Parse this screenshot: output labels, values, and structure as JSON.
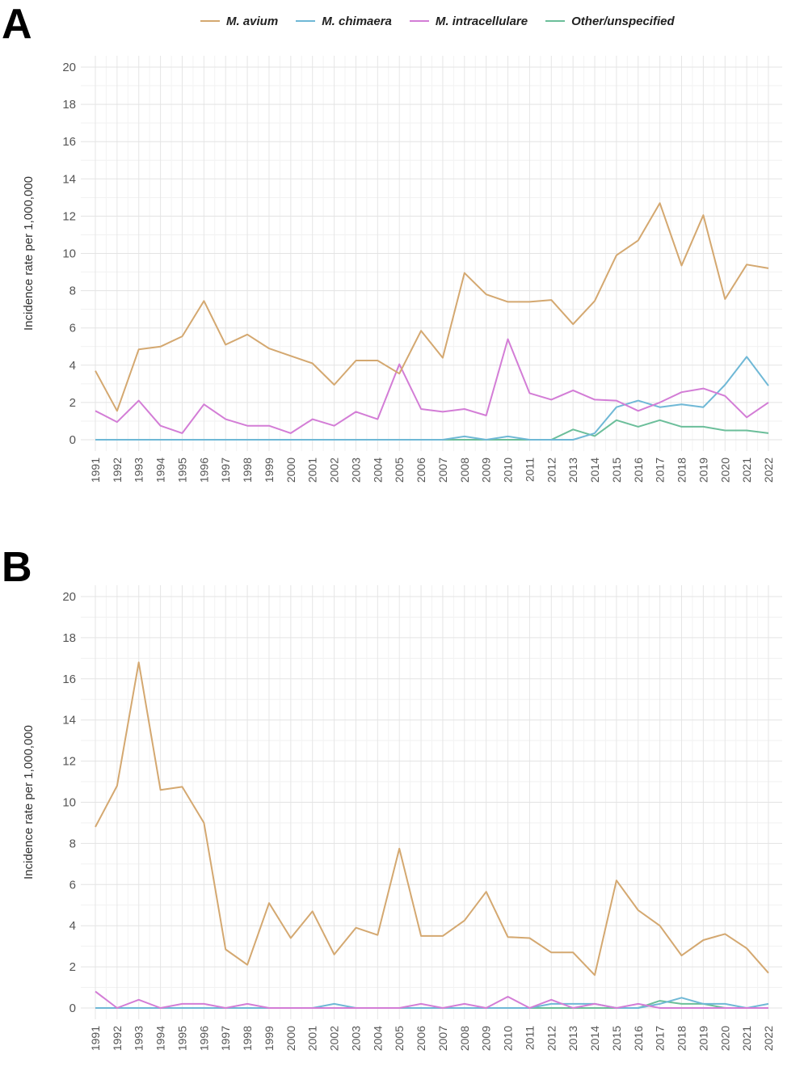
{
  "panels": {
    "a_label": "A",
    "b_label": "B"
  },
  "legend": [
    {
      "name": "M. avium",
      "color": "#D4A870"
    },
    {
      "name": "M. chimaera",
      "color": "#6FB8D6"
    },
    {
      "name": "M. intracellulare",
      "color": "#D37DD6"
    },
    {
      "name": "Other/unspecified",
      "color": "#6BBE9A"
    }
  ],
  "chart_data": [
    {
      "type": "line",
      "panel": "A",
      "ylabel": "Incidence rate per 1,000,000",
      "xlabel": "",
      "ylim": [
        0,
        20
      ],
      "yticks": [
        0,
        2,
        4,
        6,
        8,
        10,
        12,
        14,
        16,
        18,
        20
      ],
      "grid": true,
      "legend_position": "top",
      "x": [
        1991,
        1992,
        1993,
        1994,
        1995,
        1996,
        1997,
        1998,
        1999,
        2000,
        2001,
        2002,
        2003,
        2004,
        2005,
        2006,
        2007,
        2008,
        2009,
        2010,
        2011,
        2012,
        2013,
        2014,
        2015,
        2016,
        2017,
        2018,
        2019,
        2020,
        2021,
        2022
      ],
      "series": [
        {
          "name": "M. avium",
          "color": "#D4A870",
          "values": [
            3.7,
            1.55,
            4.85,
            5.0,
            5.55,
            7.45,
            5.1,
            5.65,
            4.9,
            4.5,
            4.1,
            2.95,
            4.25,
            4.25,
            3.55,
            5.85,
            4.4,
            8.95,
            7.8,
            7.4,
            7.4,
            7.5,
            6.2,
            7.45,
            9.9,
            10.7,
            12.7,
            9.35,
            12.05,
            7.55,
            9.4,
            9.2
          ]
        },
        {
          "name": "M. chimaera",
          "color": "#6FB8D6",
          "values": [
            0,
            0,
            0,
            0,
            0,
            0,
            0,
            0,
            0,
            0,
            0,
            0,
            0,
            0,
            0,
            0,
            0,
            0.18,
            0,
            0.18,
            0,
            0,
            0,
            0.35,
            1.75,
            2.1,
            1.75,
            1.9,
            1.75,
            2.95,
            4.45,
            2.9
          ]
        },
        {
          "name": "M. intracellulare",
          "color": "#D37DD6",
          "values": [
            1.55,
            0.95,
            2.1,
            0.75,
            0.35,
            1.9,
            1.1,
            0.75,
            0.75,
            0.35,
            1.1,
            0.75,
            1.5,
            1.1,
            4.05,
            1.65,
            1.5,
            1.65,
            1.3,
            5.4,
            2.5,
            2.15,
            2.65,
            2.15,
            2.1,
            1.55,
            2.0,
            2.55,
            2.75,
            2.35,
            1.2,
            2.0
          ]
        },
        {
          "name": "Other/unspecified",
          "color": "#6BBE9A",
          "values": [
            0,
            0,
            0,
            0,
            0,
            0,
            0,
            0,
            0,
            0,
            0,
            0,
            0,
            0,
            0,
            0,
            0,
            0,
            0,
            0,
            0,
            0,
            0.55,
            0.2,
            1.05,
            0.7,
            1.05,
            0.7,
            0.7,
            0.5,
            0.5,
            0.35
          ]
        }
      ]
    },
    {
      "type": "line",
      "panel": "B",
      "ylabel": "Incidence rate per 1,000,000",
      "xlabel": "",
      "ylim": [
        0,
        20
      ],
      "yticks": [
        0,
        2,
        4,
        6,
        8,
        10,
        12,
        14,
        16,
        18,
        20
      ],
      "grid": true,
      "x": [
        1991,
        1992,
        1993,
        1994,
        1995,
        1996,
        1997,
        1998,
        1999,
        2000,
        2001,
        2002,
        2003,
        2004,
        2005,
        2006,
        2007,
        2008,
        2009,
        2010,
        2011,
        2012,
        2013,
        2014,
        2015,
        2016,
        2017,
        2018,
        2019,
        2020,
        2021,
        2022
      ],
      "series": [
        {
          "name": "M. avium",
          "color": "#D4A870",
          "values": [
            8.8,
            10.8,
            16.8,
            10.6,
            10.75,
            9.0,
            2.85,
            2.1,
            5.1,
            3.4,
            4.7,
            2.6,
            3.9,
            3.55,
            7.75,
            3.5,
            3.5,
            4.25,
            5.65,
            3.45,
            3.4,
            2.7,
            2.7,
            1.6,
            6.2,
            4.75,
            4.0,
            2.55,
            3.3,
            3.6,
            2.9,
            1.7
          ]
        },
        {
          "name": "M. chimaera",
          "color": "#6FB8D6",
          "values": [
            0,
            0,
            0,
            0,
            0,
            0,
            0,
            0,
            0,
            0,
            0,
            0.2,
            0,
            0,
            0,
            0,
            0,
            0,
            0,
            0,
            0,
            0.2,
            0.2,
            0.2,
            0,
            0,
            0.2,
            0.5,
            0.2,
            0.2,
            0,
            0.2
          ]
        },
        {
          "name": "M. intracellulare",
          "color": "#D37DD6",
          "values": [
            0.8,
            0,
            0.4,
            0,
            0.2,
            0.2,
            0,
            0.2,
            0,
            0,
            0,
            0,
            0,
            0,
            0,
            0.2,
            0,
            0.2,
            0,
            0.55,
            0,
            0.4,
            0,
            0.2,
            0,
            0.2,
            0,
            0,
            0,
            0,
            0,
            0
          ]
        },
        {
          "name": "Other/unspecified",
          "color": "#6BBE9A",
          "values": [
            0,
            0,
            0,
            0,
            0,
            0,
            0,
            0,
            0,
            0,
            0,
            0,
            0,
            0,
            0,
            0,
            0,
            0,
            0,
            0,
            0,
            0,
            0,
            0,
            0,
            0,
            0.35,
            0.2,
            0.2,
            0,
            0,
            0
          ]
        }
      ]
    }
  ]
}
